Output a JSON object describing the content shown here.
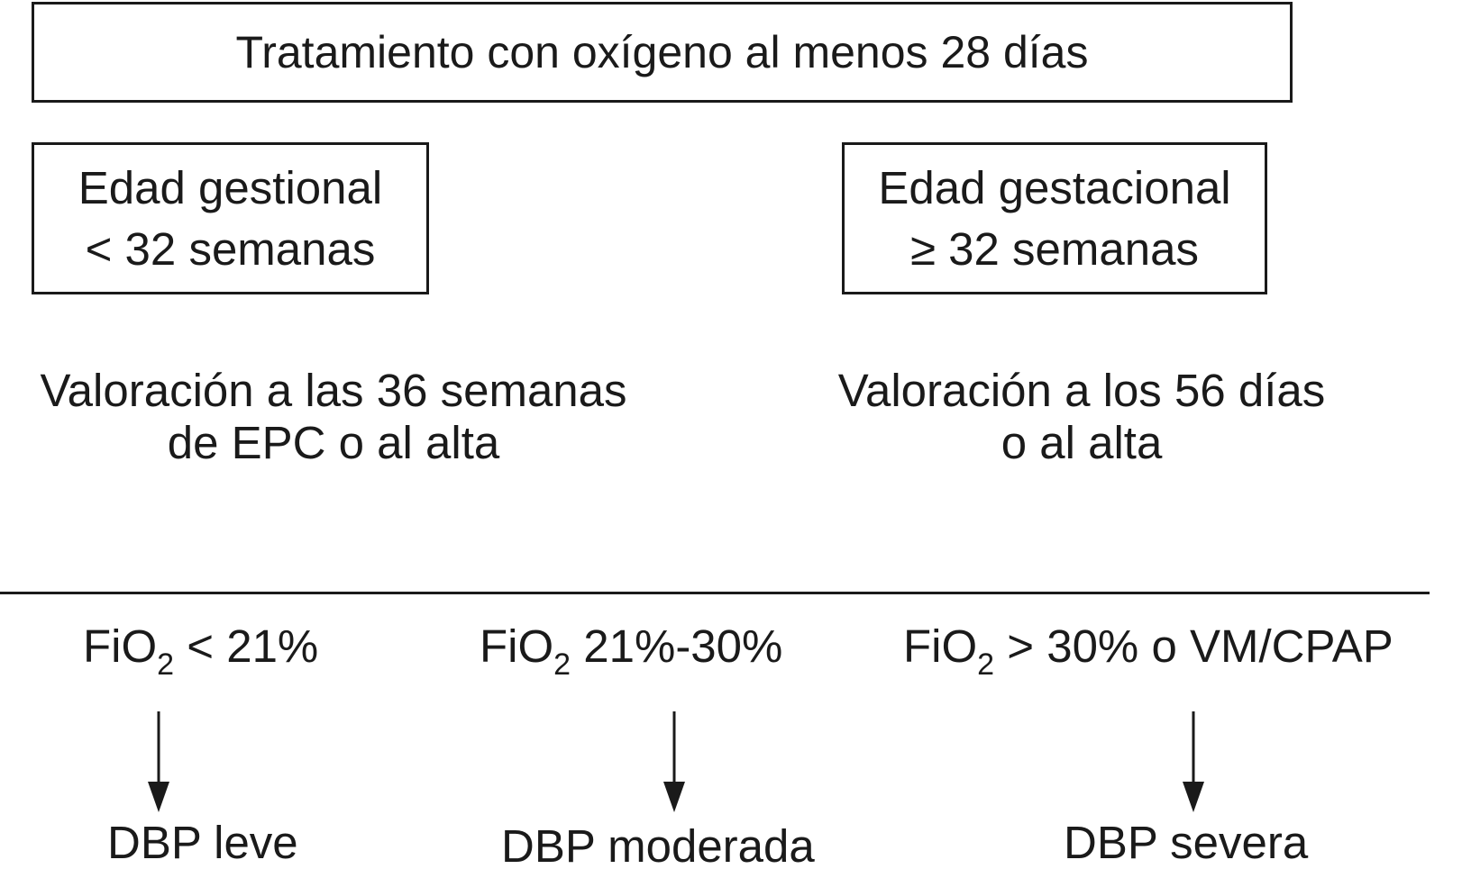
{
  "top_box": {
    "text": "Tratamiento con oxígeno al menos 28 días"
  },
  "left_branch": {
    "box_line1": "Edad gestional",
    "box_line2": "< 32 semanas",
    "note_line1": "Valoración a las 36 semanas",
    "note_line2": "de EPC o al alta"
  },
  "right_branch": {
    "box_line1": "Edad gestacional",
    "box_line2": "≥ 32 semanas",
    "note_line1": "Valoración a los 56 días",
    "note_line2": "o al alta"
  },
  "criteria": [
    {
      "prefix": "FiO",
      "subscript": "2",
      "rest": " < 21%"
    },
    {
      "prefix": "FiO",
      "subscript": "2",
      "rest": " 21%-30%"
    },
    {
      "prefix": "FiO",
      "subscript": "2",
      "rest": " > 30% o VM/CPAP"
    }
  ],
  "outcomes": [
    "DBP leve",
    "DBP moderada",
    "DBP severa"
  ]
}
